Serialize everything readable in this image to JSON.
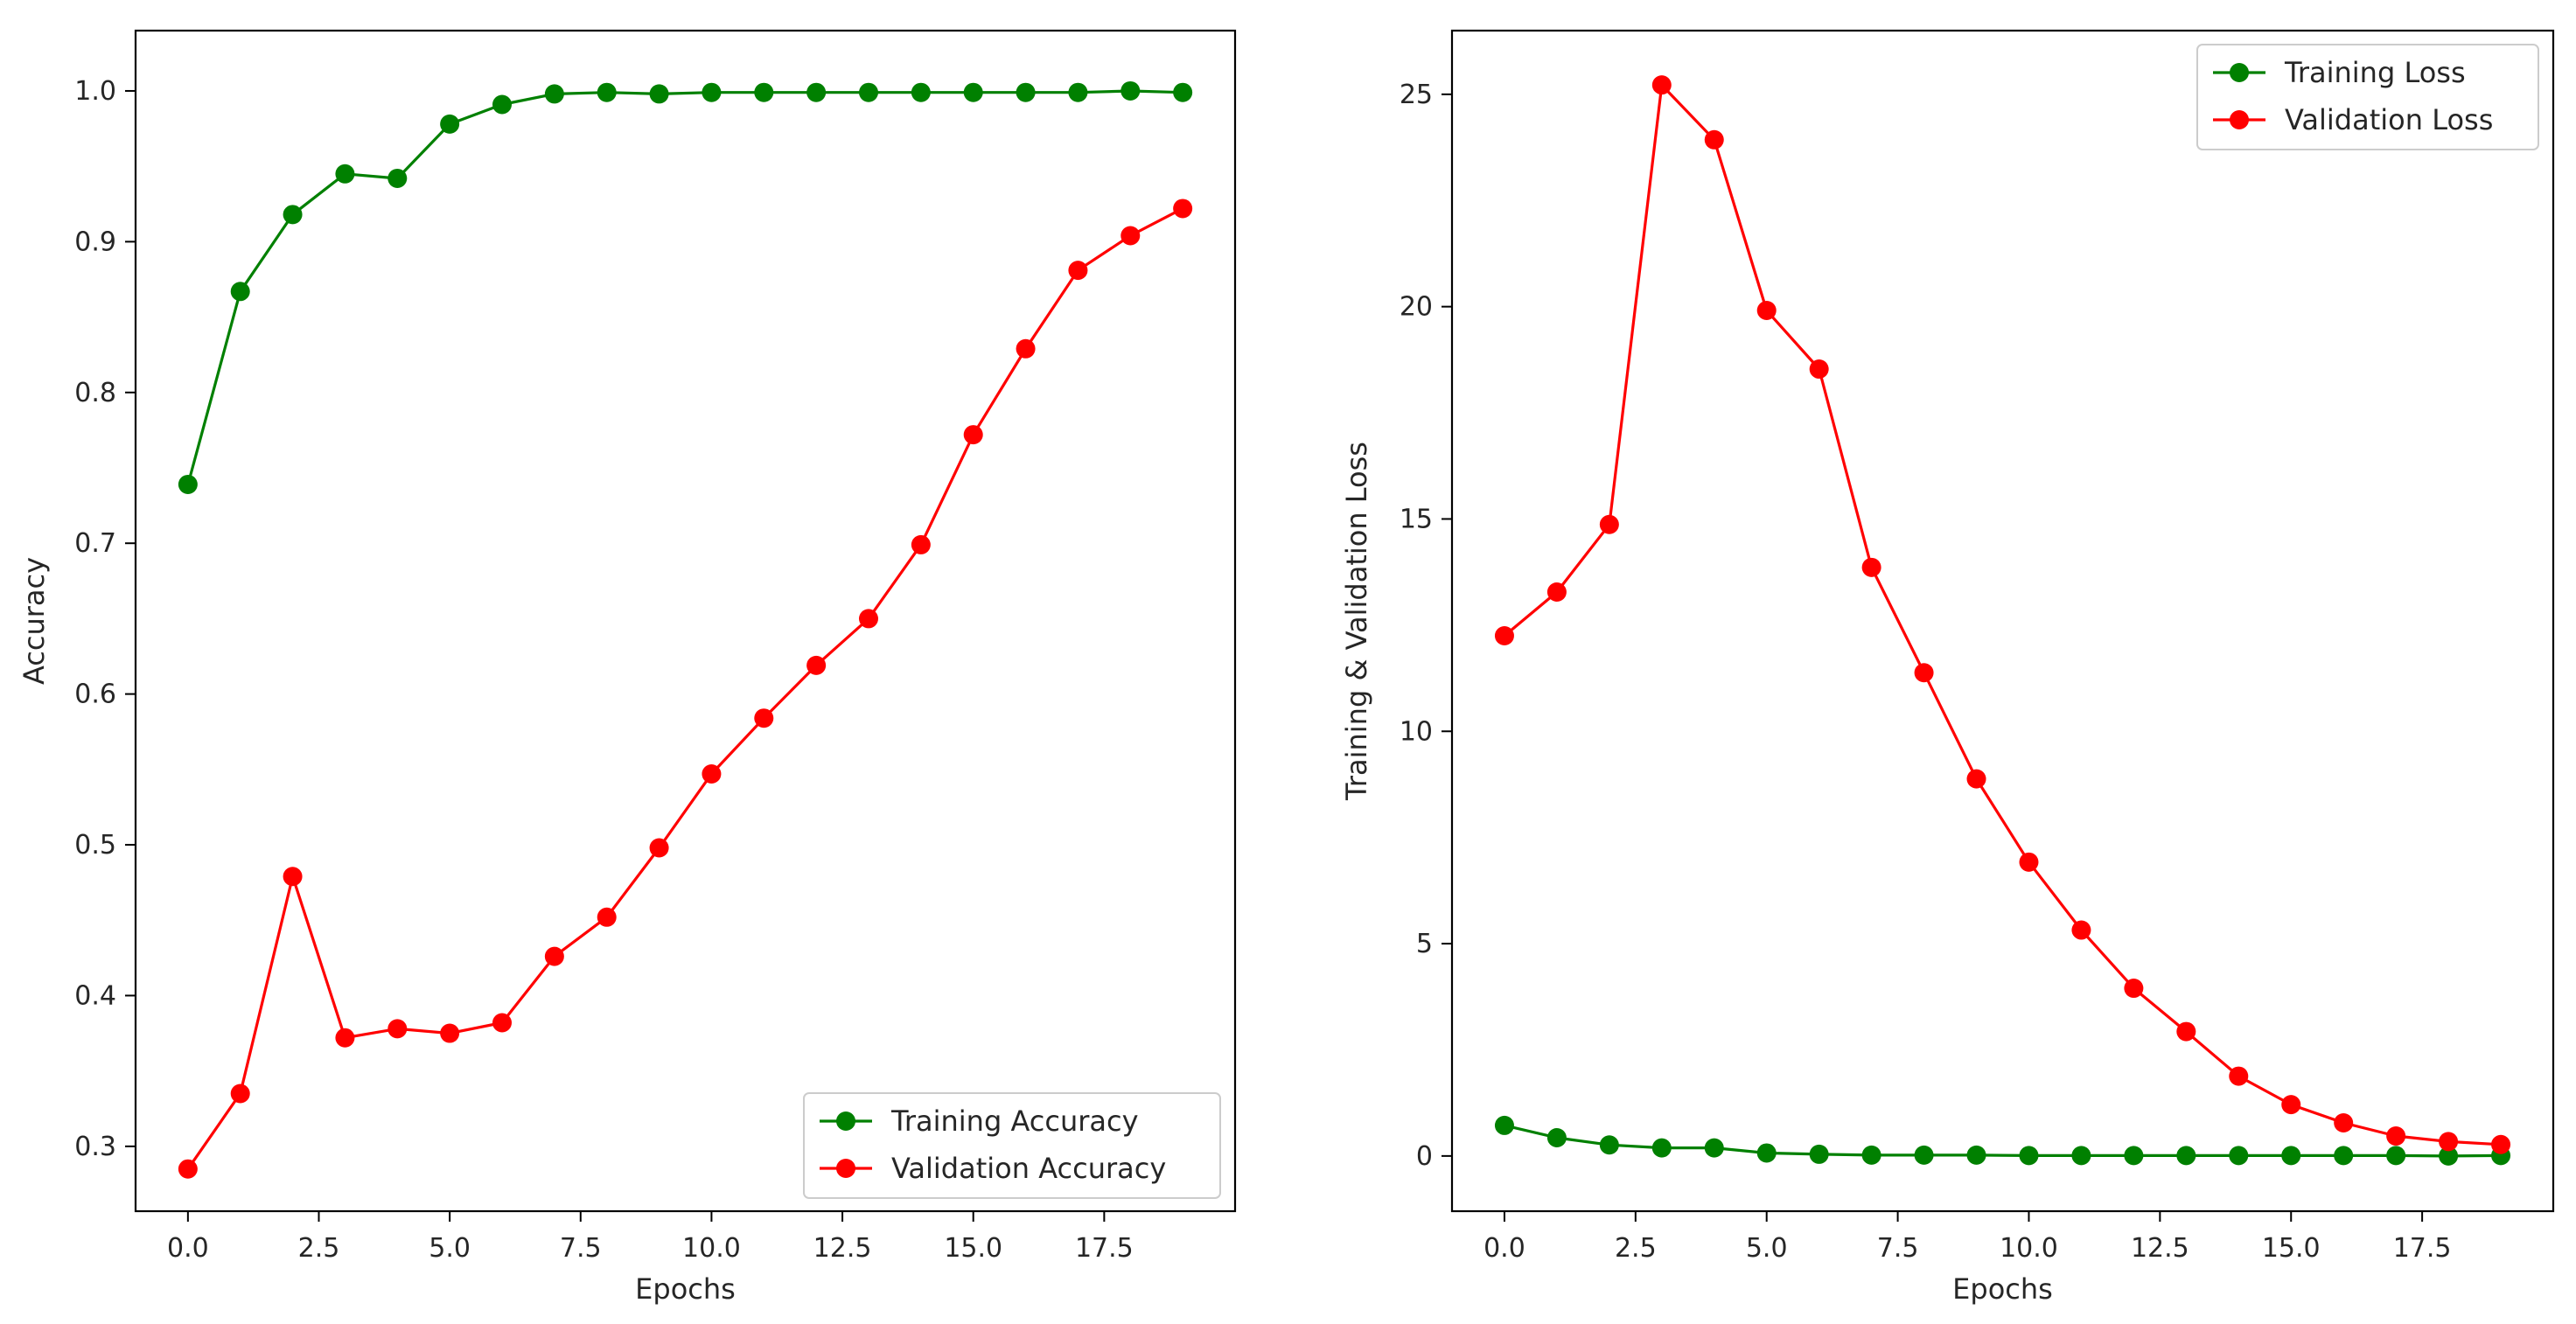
{
  "chart_data": [
    {
      "type": "line",
      "title": "",
      "xlabel": "Epochs",
      "ylabel": "Accuracy",
      "xlim": [
        -1.0,
        20.0
      ],
      "ylim": [
        0.257,
        1.04
      ],
      "xticks": [
        0.0,
        2.5,
        5.0,
        7.5,
        10.0,
        12.5,
        15.0,
        17.5
      ],
      "xtick_labels": [
        "0.0",
        "2.5",
        "5.0",
        "7.5",
        "10.0",
        "12.5",
        "15.0",
        "17.5"
      ],
      "yticks": [
        0.3,
        0.4,
        0.5,
        0.6,
        0.7,
        0.8,
        0.9,
        1.0
      ],
      "ytick_labels": [
        "0.3",
        "0.4",
        "0.5",
        "0.6",
        "0.7",
        "0.8",
        "0.9",
        "1.0"
      ],
      "legend_position": "bottom-right",
      "grid": false,
      "x": [
        0,
        1,
        2,
        3,
        4,
        5,
        6,
        7,
        8,
        9,
        10,
        11,
        12,
        13,
        14,
        15,
        16,
        17,
        18,
        19
      ],
      "series": [
        {
          "name": "Training Accuracy",
          "color": "#008000",
          "values": [
            0.739,
            0.867,
            0.918,
            0.945,
            0.942,
            0.978,
            0.991,
            0.998,
            0.999,
            0.998,
            0.999,
            0.999,
            0.999,
            0.999,
            0.999,
            0.999,
            0.999,
            0.999,
            1.0,
            0.999
          ]
        },
        {
          "name": "Validation Accuracy",
          "color": "#ff0000",
          "values": [
            0.285,
            0.335,
            0.479,
            0.372,
            0.378,
            0.375,
            0.382,
            0.426,
            0.452,
            0.498,
            0.547,
            0.584,
            0.619,
            0.65,
            0.699,
            0.772,
            0.829,
            0.881,
            0.904,
            0.922
          ]
        }
      ]
    },
    {
      "type": "line",
      "title": "",
      "xlabel": "Epochs",
      "ylabel": "Training & Validation Loss",
      "xlim": [
        -1.0,
        20.0
      ],
      "ylim": [
        -1.3,
        26.5
      ],
      "xticks": [
        0.0,
        2.5,
        5.0,
        7.5,
        10.0,
        12.5,
        15.0,
        17.5
      ],
      "xtick_labels": [
        "0.0",
        "2.5",
        "5.0",
        "7.5",
        "10.0",
        "12.5",
        "15.0",
        "17.5"
      ],
      "yticks": [
        0,
        5,
        10,
        15,
        20,
        25
      ],
      "ytick_labels": [
        "0",
        "5",
        "10",
        "15",
        "20",
        "25"
      ],
      "legend_position": "top-right",
      "grid": false,
      "x": [
        0,
        1,
        2,
        3,
        4,
        5,
        6,
        7,
        8,
        9,
        10,
        11,
        12,
        13,
        14,
        15,
        16,
        17,
        18,
        19
      ],
      "series": [
        {
          "name": "Training Loss",
          "color": "#008000",
          "values": [
            0.72,
            0.43,
            0.26,
            0.19,
            0.19,
            0.07,
            0.04,
            0.02,
            0.02,
            0.02,
            0.01,
            0.01,
            0.01,
            0.01,
            0.01,
            0.01,
            0.01,
            0.01,
            0.0,
            0.01
          ]
        },
        {
          "name": "Validation Loss",
          "color": "#ff0000",
          "values": [
            12.25,
            13.28,
            14.87,
            25.22,
            23.93,
            19.91,
            18.53,
            13.86,
            11.38,
            8.88,
            6.92,
            5.32,
            3.95,
            2.93,
            1.88,
            1.21,
            0.78,
            0.47,
            0.34,
            0.27
          ]
        }
      ]
    }
  ]
}
